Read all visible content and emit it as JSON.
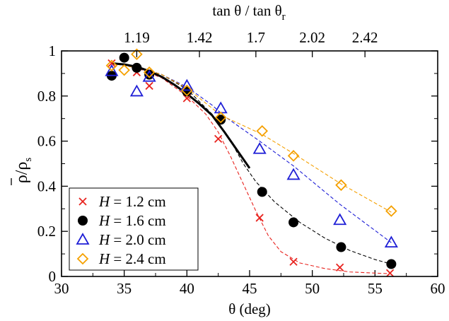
{
  "chart_data": {
    "type": "scatter",
    "xlabel": "θ (deg)",
    "ylabel_main": "ρ",
    "ylabel_sep": "/",
    "ylabel_sub_rho": "ρ",
    "ylabel_sub": "s",
    "top_label_main": "tan θ / tan θ",
    "top_label_sub": "r",
    "xlim": [
      30,
      60
    ],
    "ylim": [
      0,
      1
    ],
    "x_ticks": [
      30,
      35,
      40,
      45,
      50,
      55,
      60
    ],
    "y_ticks": [
      0,
      0.2,
      0.4,
      0.6,
      0.8,
      1
    ],
    "y_tick_labels": [
      "0",
      "0.2",
      "0.4",
      "0.6",
      "0.8",
      "1"
    ],
    "top_ticks": [
      {
        "label": "1.19",
        "theta": 36.0
      },
      {
        "label": "1.42",
        "theta": 41.0
      },
      {
        "label": "1.7",
        "theta": 45.5
      },
      {
        "label": "2.02",
        "theta": 50.0
      },
      {
        "label": "2.42",
        "theta": 54.2
      }
    ],
    "series": [
      {
        "name_italic": "H",
        "name_rest": " = 1.2 cm",
        "marker": "cross",
        "color": "#e8231e",
        "x": [
          34.0,
          36.0,
          37.0,
          40.0,
          42.5,
          45.8,
          48.5,
          52.2,
          56.2
        ],
        "y": [
          0.945,
          0.905,
          0.845,
          0.79,
          0.61,
          0.26,
          0.065,
          0.04,
          0.015
        ],
        "fit_x": [
          34.0,
          36.0,
          38.0,
          40.0,
          41.5,
          42.5,
          43.5,
          44.5,
          45.5,
          46.5,
          47.5,
          49.0,
          51.0,
          53.0,
          55.0,
          56.2
        ],
        "fit_y": [
          0.945,
          0.925,
          0.88,
          0.8,
          0.72,
          0.64,
          0.53,
          0.41,
          0.29,
          0.18,
          0.11,
          0.06,
          0.035,
          0.02,
          0.015,
          0.012
        ]
      },
      {
        "name_italic": "H",
        "name_rest": " = 1.6 cm",
        "marker": "circle",
        "color": "#000000",
        "x": [
          34.0,
          35.0,
          36.0,
          37.0,
          40.0,
          42.7,
          46.0,
          48.5,
          52.3,
          56.3
        ],
        "y": [
          0.89,
          0.97,
          0.925,
          0.895,
          0.82,
          0.695,
          0.375,
          0.24,
          0.13,
          0.055
        ],
        "fit_x": [
          34.0,
          36.0,
          38.0,
          40.0,
          42.0,
          43.5,
          44.5,
          45.5,
          47.0,
          49.0,
          51.0,
          53.0,
          55.0,
          56.3
        ],
        "fit_y": [
          0.945,
          0.93,
          0.895,
          0.83,
          0.72,
          0.6,
          0.5,
          0.42,
          0.33,
          0.24,
          0.17,
          0.115,
          0.075,
          0.055
        ]
      },
      {
        "name_italic": "H",
        "name_rest": " = 2.0 cm",
        "marker": "triangle",
        "color": "#1f1fd6",
        "x": [
          34.0,
          36.0,
          37.0,
          40.0,
          42.7,
          45.8,
          48.5,
          52.2,
          56.3
        ],
        "y": [
          0.91,
          0.82,
          0.885,
          0.845,
          0.745,
          0.565,
          0.45,
          0.25,
          0.15
        ],
        "fit_x": [
          34.0,
          36.0,
          38.0,
          40.0,
          42.0,
          43.0,
          45.8,
          48.5,
          52.2,
          56.3
        ],
        "fit_y": [
          0.945,
          0.925,
          0.895,
          0.84,
          0.76,
          0.71,
          0.6,
          0.49,
          0.32,
          0.15
        ]
      },
      {
        "name_italic": "H",
        "name_rest": " = 2.4 cm",
        "marker": "diamond",
        "color": "#f5a000",
        "x": [
          34.0,
          35.0,
          36.0,
          37.0,
          40.0,
          42.7,
          46.0,
          48.5,
          52.3,
          56.3
        ],
        "y": [
          0.935,
          0.915,
          0.985,
          0.905,
          0.825,
          0.705,
          0.645,
          0.535,
          0.405,
          0.29
        ],
        "fit_x": [
          34.0,
          36.0,
          38.0,
          40.0,
          42.7,
          46.0,
          48.5,
          52.3,
          56.3
        ],
        "fit_y": [
          0.945,
          0.925,
          0.895,
          0.835,
          0.715,
          0.63,
          0.545,
          0.41,
          0.285
        ]
      }
    ],
    "theory_curve": {
      "color": "#000000",
      "x": [
        34.0,
        35.0,
        36.0,
        37.0,
        38.0,
        39.0,
        40.0,
        41.0,
        42.0,
        43.0,
        44.0,
        45.0
      ],
      "y": [
        0.945,
        0.94,
        0.93,
        0.91,
        0.885,
        0.85,
        0.81,
        0.765,
        0.715,
        0.64,
        0.56,
        0.48
      ]
    },
    "legend_position": "bottom-left"
  }
}
